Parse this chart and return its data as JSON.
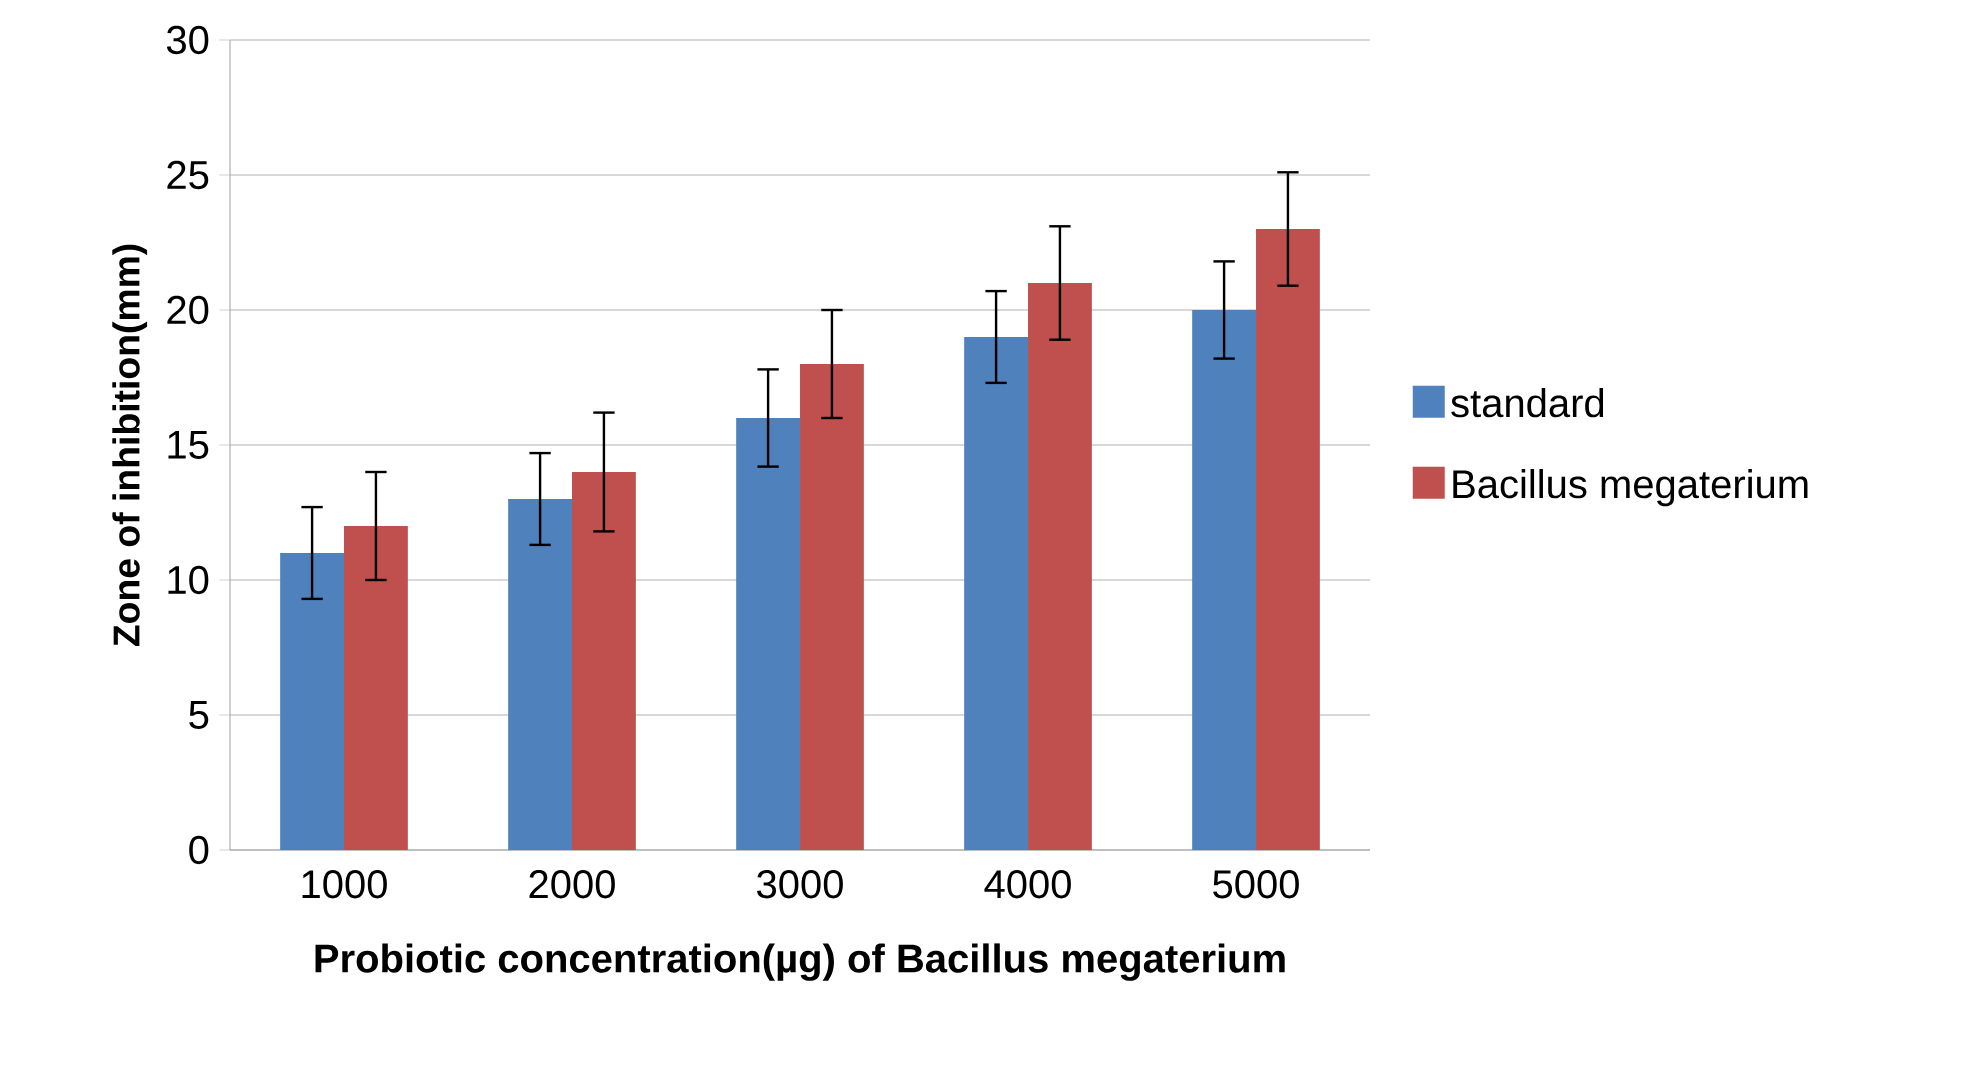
{
  "chart_data": {
    "type": "bar",
    "xlabel": "Probiotic concentration(µg)  of Bacillus  megaterium",
    "ylabel": "Zone of inhibition(mm)",
    "categories": [
      "1000",
      "2000",
      "3000",
      "4000",
      "5000"
    ],
    "series": [
      {
        "name": "standard",
        "color": "#4f81bd",
        "values": [
          11,
          13,
          16,
          19,
          20
        ],
        "errors": [
          1.7,
          1.7,
          1.8,
          1.7,
          1.8
        ]
      },
      {
        "name": "Bacillus megaterium",
        "color": "#c0504d",
        "values": [
          12,
          14,
          18,
          21,
          23
        ],
        "errors": [
          2,
          2.2,
          2,
          2.1,
          2.1
        ]
      }
    ],
    "ylim": [
      0,
      30
    ],
    "yticks": [
      0,
      5,
      10,
      15,
      20,
      25,
      30
    ],
    "grid": "y",
    "legend": "right"
  }
}
